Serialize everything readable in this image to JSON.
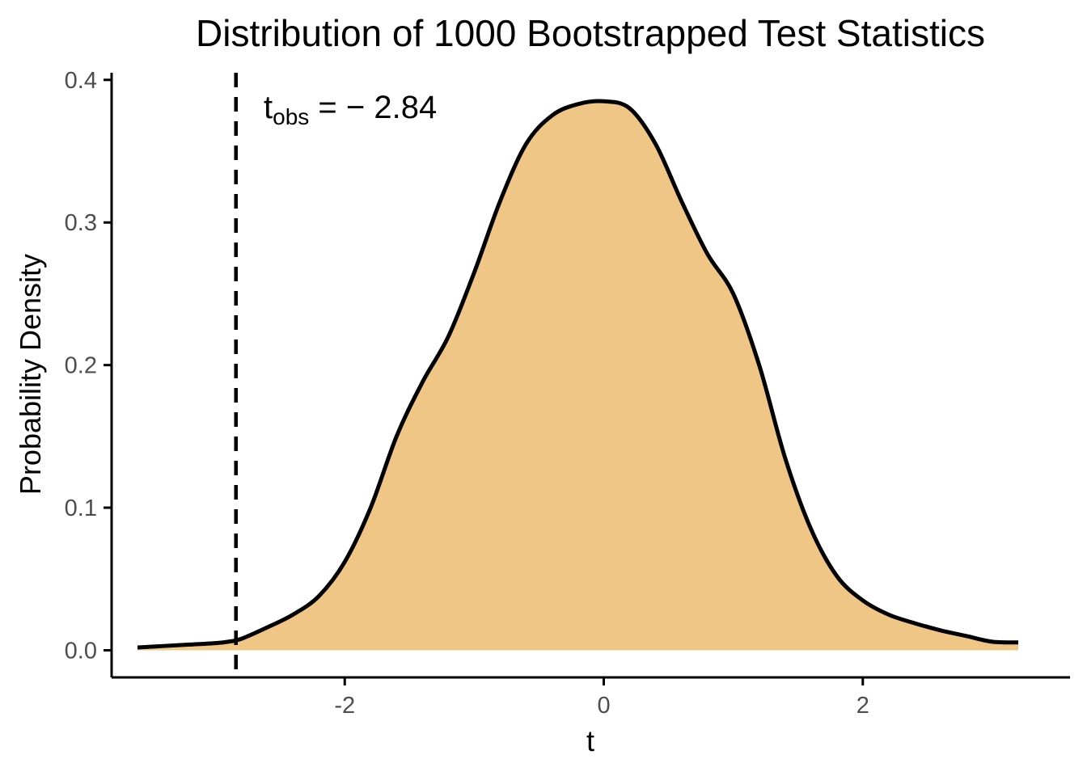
{
  "chart_data": {
    "type": "area",
    "title": "Distribution of 1000 Bootstrapped Test Statistics",
    "xlabel": "t",
    "ylabel": "Probability Density",
    "xlim": [
      -3.8,
      3.6
    ],
    "ylim": [
      -0.019,
      0.405
    ],
    "x_ticks": [
      -2,
      0,
      2
    ],
    "x_tick_labels": [
      "-2",
      "0",
      "2"
    ],
    "y_ticks": [
      0.0,
      0.1,
      0.2,
      0.3,
      0.4
    ],
    "y_tick_labels": [
      "0.0",
      "0.1",
      "0.2",
      "0.3",
      "0.4"
    ],
    "fill_color": "#efc685",
    "line_color": "#000000",
    "grid": false,
    "x": [
      -3.6,
      -3.4,
      -3.2,
      -3.0,
      -2.9,
      -2.8,
      -2.6,
      -2.4,
      -2.2,
      -2.0,
      -1.8,
      -1.6,
      -1.4,
      -1.2,
      -1.0,
      -0.8,
      -0.6,
      -0.4,
      -0.2,
      0.0,
      0.2,
      0.4,
      0.6,
      0.8,
      1.0,
      1.2,
      1.4,
      1.6,
      1.8,
      2.0,
      2.2,
      2.4,
      2.6,
      2.8,
      3.0,
      3.2
    ],
    "y": [
      0.002,
      0.003,
      0.004,
      0.005,
      0.006,
      0.008,
      0.016,
      0.025,
      0.038,
      0.062,
      0.1,
      0.15,
      0.188,
      0.22,
      0.265,
      0.315,
      0.355,
      0.375,
      0.383,
      0.385,
      0.38,
      0.355,
      0.315,
      0.278,
      0.25,
      0.2,
      0.135,
      0.085,
      0.052,
      0.035,
      0.025,
      0.019,
      0.014,
      0.01,
      0.006,
      0.0055
    ],
    "observed": {
      "x": -2.84,
      "label_main": "t",
      "label_sub": "obs",
      "label_value": " = − 2.84"
    }
  }
}
